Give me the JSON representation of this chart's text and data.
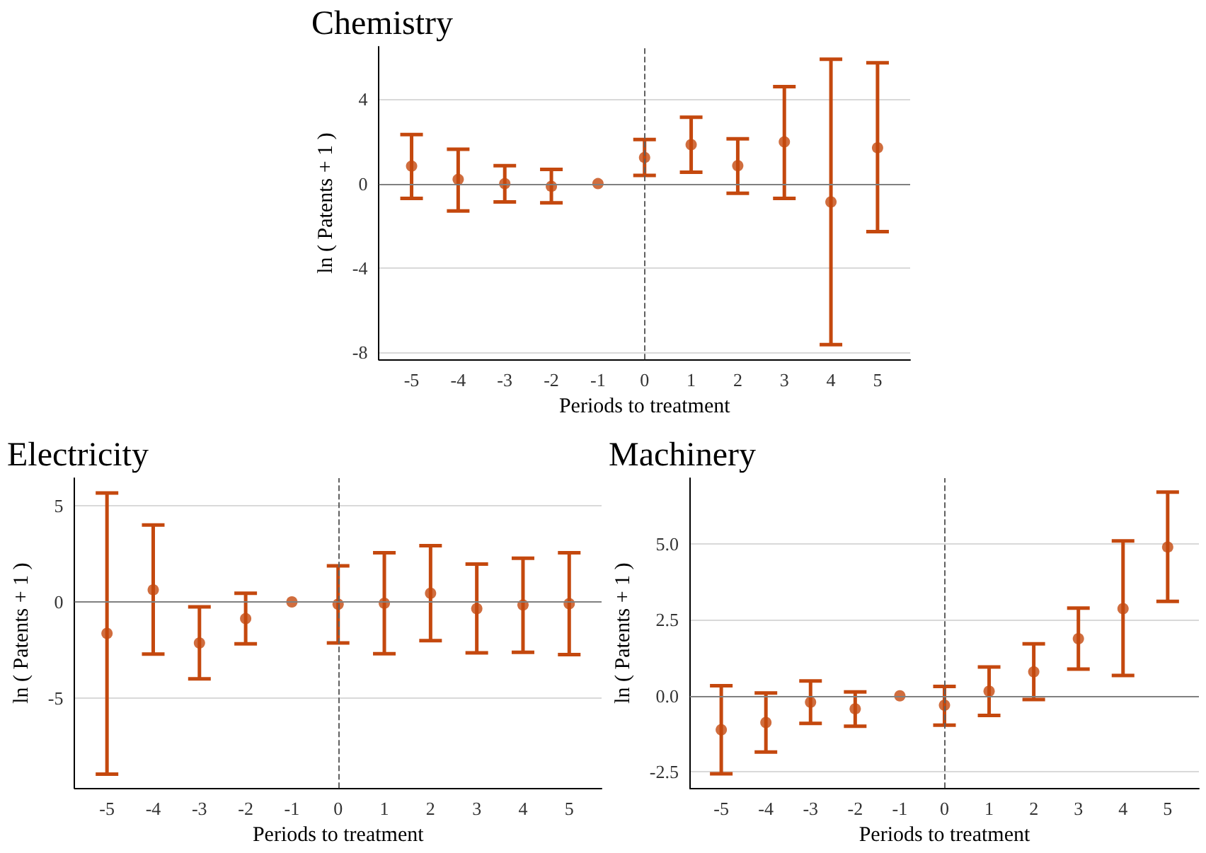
{
  "chart_data": [
    {
      "type": "scatter",
      "title": "Chemistry",
      "xlabel": "Periods to treatment",
      "ylabel": "ln ( Patents + 1 )",
      "x": [
        -5,
        -4,
        -3,
        -2,
        -1,
        0,
        1,
        2,
        3,
        4,
        5
      ],
      "xlim": [
        -5.7,
        5.7
      ],
      "xticks": [
        -5,
        -4,
        -3,
        -2,
        -1,
        0,
        1,
        2,
        3,
        4,
        5
      ],
      "ylim": [
        -8.35,
        6.5
      ],
      "yticks": [
        -8,
        -4,
        0,
        4
      ],
      "grid": "y",
      "marker": "circle",
      "series": [
        {
          "color": "#c4480e",
          "values": [
            0.83,
            0.2,
            0,
            -0.13,
            0,
            1.24,
            1.85,
            0.85,
            1.98,
            -0.87,
            1.7
          ],
          "errors": [
            [
              -0.7,
              2.33
            ],
            [
              -1.3,
              1.63
            ],
            [
              -0.87,
              0.85
            ],
            [
              -0.91,
              0.67
            ],
            null,
            [
              0.39,
              2.09
            ],
            [
              0.54,
              3.15
            ],
            [
              -0.46,
              2.13
            ],
            [
              -0.7,
              4.6
            ],
            [
              -7.65,
              5.9
            ],
            [
              -2.28,
              5.74
            ]
          ]
        }
      ],
      "ref_lines": [
        {
          "axis": "y",
          "value": 0,
          "color": "#808080",
          "line_style": "solid"
        },
        {
          "axis": "x",
          "value": 0,
          "color": "#606060",
          "line_style": "dashed"
        }
      ]
    },
    {
      "type": "scatter",
      "title": "Electricity",
      "xlabel": "Periods to treatment",
      "ylabel": "ln ( Patents + 1 )",
      "x": [
        -5,
        -4,
        -3,
        -2,
        -1,
        0,
        1,
        2,
        3,
        4,
        5
      ],
      "xlim": [
        -5.7,
        5.7
      ],
      "xticks": [
        -5,
        -4,
        -3,
        -2,
        -1,
        0,
        1,
        2,
        3,
        4,
        5
      ],
      "ylim": [
        -9.7,
        6.45
      ],
      "yticks": [
        -5,
        0,
        5
      ],
      "grid": "y",
      "marker": "circle",
      "series": [
        {
          "color": "#c4480e",
          "values": [
            -1.64,
            0.63,
            -2.14,
            -0.87,
            0,
            -0.12,
            -0.07,
            0.45,
            -0.35,
            -0.16,
            -0.09
          ],
          "errors": [
            [
              -8.97,
              5.68
            ],
            [
              -2.72,
              4.01
            ],
            [
              -4.01,
              -0.26
            ],
            [
              -2.18,
              0.45
            ],
            null,
            [
              -2.14,
              1.88
            ],
            [
              -2.7,
              2.56
            ],
            [
              -2.02,
              2.93
            ],
            [
              -2.65,
              1.97
            ],
            [
              -2.63,
              2.28
            ],
            [
              -2.75,
              2.56
            ]
          ]
        }
      ],
      "ref_lines": [
        {
          "axis": "y",
          "value": 0,
          "color": "#808080",
          "line_style": "solid"
        },
        {
          "axis": "x",
          "value": 0,
          "color": "#606060",
          "line_style": "dashed"
        }
      ]
    },
    {
      "type": "scatter",
      "title": "Machinery",
      "xlabel": "Periods to treatment",
      "ylabel": "ln ( Patents + 1 )",
      "x": [
        -5,
        -4,
        -3,
        -2,
        -1,
        0,
        1,
        2,
        3,
        4,
        5
      ],
      "xlim": [
        -5.7,
        5.7
      ],
      "xticks": [
        -5,
        -4,
        -3,
        -2,
        -1,
        0,
        1,
        2,
        3,
        4,
        5
      ],
      "ylim": [
        -3.04,
        7.17
      ],
      "yticks": [
        {
          "value": -2.5,
          "label": "-2.5"
        },
        {
          "value": 0,
          "label": "0.0"
        },
        {
          "value": 2.5,
          "label": "2.5"
        },
        {
          "value": 5,
          "label": "5.0"
        }
      ],
      "grid": "y",
      "marker": "circle",
      "series": [
        {
          "color": "#c4480e",
          "values": [
            -1.12,
            -0.88,
            -0.21,
            -0.43,
            0,
            -0.31,
            0.15,
            0.79,
            1.88,
            2.87,
            4.9
          ],
          "errors": [
            [
              -2.57,
              0.33
            ],
            [
              -1.85,
              0.09
            ],
            [
              -0.91,
              0.49
            ],
            [
              -1.0,
              0.13
            ],
            null,
            [
              -0.97,
              0.31
            ],
            [
              -0.65,
              0.95
            ],
            [
              -0.12,
              1.71
            ],
            [
              0.88,
              2.89
            ],
            [
              0.67,
              5.1
            ],
            [
              3.11,
              6.71
            ]
          ]
        }
      ],
      "ref_lines": [
        {
          "axis": "y",
          "value": 0,
          "color": "#808080",
          "line_style": "solid"
        },
        {
          "axis": "x",
          "value": 0,
          "color": "#606060",
          "line_style": "dashed"
        }
      ]
    }
  ]
}
